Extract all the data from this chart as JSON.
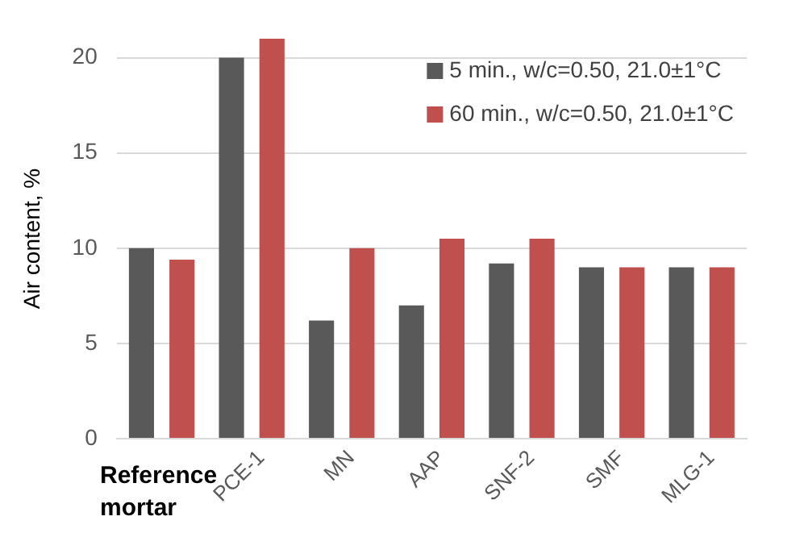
{
  "chart_data": {
    "type": "bar",
    "ylabel": "Air content, %",
    "categories": [
      "Reference mortar",
      "PCE-1",
      "MN",
      "AAP",
      "SNF-2",
      "SMF",
      "MLG-1"
    ],
    "series": [
      {
        "name": "5 min., w/c=0.50, 21.0±1°C",
        "color": "#595959",
        "values": [
          10,
          20,
          6.2,
          7,
          9.2,
          9,
          9
        ]
      },
      {
        "name": "60 min., w/c=0.50, 21.0±1°C",
        "color": "#c0504d",
        "values": [
          9.4,
          21,
          10,
          10.5,
          10.5,
          9,
          9
        ]
      }
    ],
    "ylim": [
      0,
      21
    ],
    "yticks": [
      0,
      5,
      10,
      15,
      20
    ],
    "grid": "y",
    "legend": "top right"
  }
}
